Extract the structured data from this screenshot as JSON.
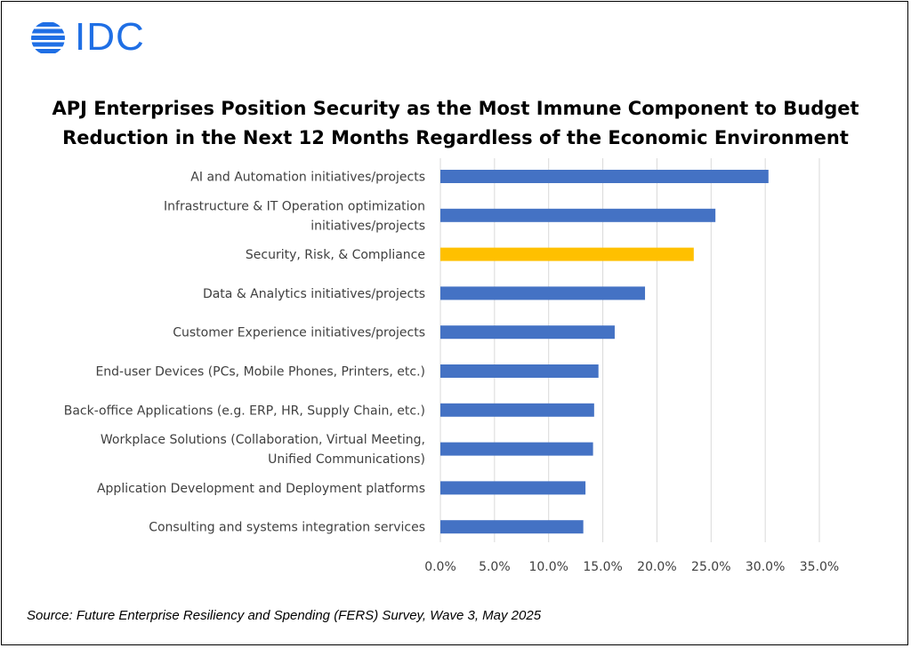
{
  "logo": {
    "text": "IDC",
    "color": "#1f6fe5"
  },
  "title_lines": [
    "APJ Enterprises Position Security as the Most Immune Component to Budget",
    "Reduction in the Next 12 Months Regardless of the Economic Environment"
  ],
  "source": "Source: Future Enterprise Resiliency and Spending (FERS) Survey, Wave 3, May 2025",
  "colors": {
    "bar": "#4472c4",
    "highlight": "#ffc000",
    "grid": "#d9d9d9"
  },
  "chart_data": {
    "type": "bar",
    "orientation": "horizontal",
    "title": "APJ Enterprises Position Security as the Most Immune Component to Budget Reduction in the Next 12 Months Regardless of the Economic Environment",
    "categories": [
      [
        "AI and Automation initiatives/projects"
      ],
      [
        "Infrastructure & IT Operation optimization",
        "initiatives/projects"
      ],
      [
        "Security, Risk, & Compliance"
      ],
      [
        "Data & Analytics initiatives/projects"
      ],
      [
        "Customer Experience initiatives/projects"
      ],
      [
        "End-user Devices (PCs, Mobile Phones, Printers, etc.)"
      ],
      [
        "Back-office Applications (e.g. ERP, HR, Supply Chain, etc.)"
      ],
      [
        "Workplace Solutions (Collaboration, Virtual Meeting,",
        "Unified Communications)"
      ],
      [
        "Application Development and Deployment platforms"
      ],
      [
        "Consulting and systems integration services"
      ]
    ],
    "values": [
      30.3,
      25.4,
      23.4,
      18.9,
      16.1,
      14.6,
      14.2,
      14.1,
      13.4,
      13.2
    ],
    "highlight_index": 2,
    "xlim": [
      0,
      35
    ],
    "xticks": [
      0,
      5,
      10,
      15,
      20,
      25,
      30,
      35
    ],
    "xtick_labels": [
      "0.0%",
      "5.0%",
      "10.0%",
      "15.0%",
      "20.0%",
      "25.0%",
      "30.0%",
      "35.0%"
    ],
    "grid": true,
    "legend": "none"
  }
}
